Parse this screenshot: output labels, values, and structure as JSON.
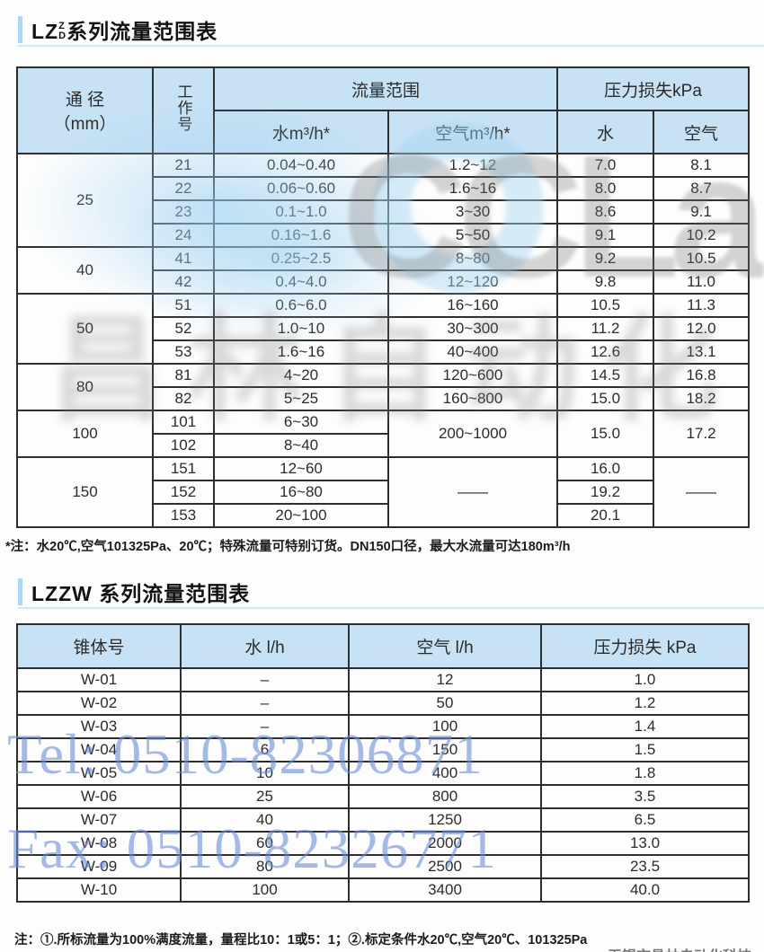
{
  "section1": {
    "title_prefix": "LZ",
    "title_sup": "Z",
    "title_sub": "D",
    "title_suffix": "系列流量范围表",
    "footnote": "*注：水20℃,空气101325Pa、20℃；特殊流量可特别订货。DN150口径，最大水流量可达180m³/h"
  },
  "table1": {
    "header": {
      "col_dn_line1": "通 径",
      "col_dn_line2": "（mm）",
      "col_work": "工作号",
      "group_flow": "流量范围",
      "col_water": "水m³/h*",
      "col_air": "空气m³/h*",
      "group_loss": "压力损失kPa",
      "col_loss_water": "水",
      "col_loss_air": "空气"
    },
    "rows": [
      [
        {
          "t": "25",
          "rs": 4
        },
        {
          "t": "21"
        },
        {
          "t": "0.04~0.40"
        },
        {
          "t": "1.2~12"
        },
        {
          "t": "7.0"
        },
        {
          "t": "8.1"
        }
      ],
      [
        null,
        {
          "t": "22"
        },
        {
          "t": "0.06~0.60"
        },
        {
          "t": "1.6~16"
        },
        {
          "t": "8.0"
        },
        {
          "t": "8.7"
        }
      ],
      [
        null,
        {
          "t": "23"
        },
        {
          "t": "0.1~1.0"
        },
        {
          "t": "3~30"
        },
        {
          "t": "8.6"
        },
        {
          "t": "9.1"
        }
      ],
      [
        null,
        {
          "t": "24"
        },
        {
          "t": "0.16~1.6"
        },
        {
          "t": "5~50"
        },
        {
          "t": "9.1"
        },
        {
          "t": "10.2"
        }
      ],
      [
        {
          "t": "40",
          "rs": 2
        },
        {
          "t": "41"
        },
        {
          "t": "0.25~2.5"
        },
        {
          "t": "8~80"
        },
        {
          "t": "9.2"
        },
        {
          "t": "10.5"
        }
      ],
      [
        null,
        {
          "t": "42"
        },
        {
          "t": "0.4~4.0"
        },
        {
          "t": "12~120"
        },
        {
          "t": "9.8"
        },
        {
          "t": "11.0"
        }
      ],
      [
        {
          "t": "50",
          "rs": 3
        },
        {
          "t": "51"
        },
        {
          "t": "0.6~6.0"
        },
        {
          "t": "16~160"
        },
        {
          "t": "10.5"
        },
        {
          "t": "11.3"
        }
      ],
      [
        null,
        {
          "t": "52"
        },
        {
          "t": "1.0~10"
        },
        {
          "t": "30~300"
        },
        {
          "t": "11.2"
        },
        {
          "t": "12.0"
        }
      ],
      [
        null,
        {
          "t": "53"
        },
        {
          "t": "1.6~16"
        },
        {
          "t": "40~400"
        },
        {
          "t": "12.6"
        },
        {
          "t": "13.1"
        }
      ],
      [
        {
          "t": "80",
          "rs": 2
        },
        {
          "t": "81"
        },
        {
          "t": "4~20"
        },
        {
          "t": "120~600"
        },
        {
          "t": "14.5"
        },
        {
          "t": "16.8"
        }
      ],
      [
        null,
        {
          "t": "82"
        },
        {
          "t": "5~25"
        },
        {
          "t": "160~800"
        },
        {
          "t": "15.0"
        },
        {
          "t": "18.2"
        }
      ],
      [
        {
          "t": "100",
          "rs": 2
        },
        {
          "t": "101"
        },
        {
          "t": "6~30"
        },
        {
          "t": "200~1000",
          "rs": 2
        },
        {
          "t": "15.0",
          "rs": 2
        },
        {
          "t": "17.2",
          "rs": 2
        }
      ],
      [
        null,
        {
          "t": "102"
        },
        {
          "t": "8~40"
        },
        null,
        null,
        null
      ],
      [
        {
          "t": "150",
          "rs": 3
        },
        {
          "t": "151"
        },
        {
          "t": "12~60"
        },
        {
          "t": "——",
          "rs": 3
        },
        {
          "t": "16.0"
        },
        {
          "t": "——",
          "rs": 3
        }
      ],
      [
        null,
        {
          "t": "152"
        },
        {
          "t": "16~80"
        },
        null,
        {
          "t": "19.2"
        },
        null
      ],
      [
        null,
        {
          "t": "153"
        },
        {
          "t": "20~100"
        },
        null,
        {
          "t": "20.1"
        },
        null
      ]
    ]
  },
  "section2": {
    "title": "LZZW 系列流量范围表",
    "note": "注：①.所标流量为100%满度流量，量程比10：1或5：1；②.标定条件水20℃,空气20℃、101325Pa"
  },
  "table2": {
    "header": [
      "锥体号",
      "水 l/h",
      "空气 l/h",
      "压力损失 kPa"
    ],
    "rows": [
      [
        "W-01",
        "–",
        "12",
        "1.0"
      ],
      [
        "W-02",
        "–",
        "50",
        "1.2"
      ],
      [
        "W-03",
        "–",
        "100",
        "1.4"
      ],
      [
        "W-04",
        "6",
        "150",
        "1.5"
      ],
      [
        "W-05",
        "10",
        "400",
        "1.8"
      ],
      [
        "W-06",
        "25",
        "800",
        "3.5"
      ],
      [
        "W-07",
        "40",
        "1250",
        "6.5"
      ],
      [
        "W-08",
        "60",
        "2000",
        "13.0"
      ],
      [
        "W-09",
        "80",
        "2500",
        "23.5"
      ],
      [
        "W-10",
        "100",
        "3400",
        "40.0"
      ]
    ]
  },
  "watermarks": {
    "logo_text": "CCLair",
    "logo_cn": "昌林自动化",
    "tel": "Tel: 0510-82306871",
    "fax": "Fax: 0510-82326771",
    "company": "无锡市昌林自动化科技"
  },
  "colors": {
    "header_bg": "#c8e2f5",
    "accent_bar": "#aed6ef",
    "watermark_blue": "#698cd7",
    "border": "#2e2e2e"
  }
}
